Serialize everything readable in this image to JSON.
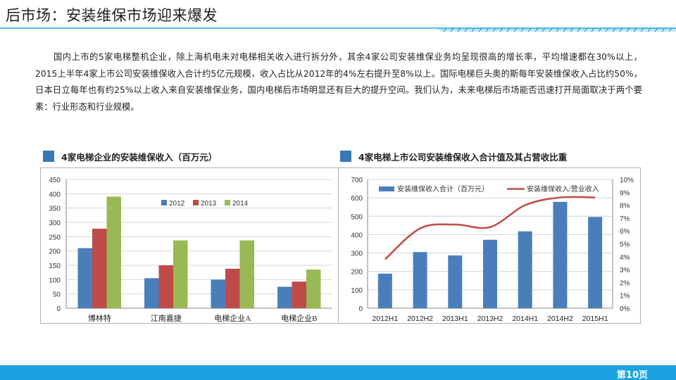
{
  "page": {
    "title": "后市场：安装维保市场迎来爆发",
    "intro": "国内上市的5家电梯整机企业，除上海机电未对电梯相关收入进行拆分外，其余4家公司安装维保业务均呈现很高的增长率，平均增速都在30%以上，2015上半年4家上市公司安装维保收入合计约5亿元规模，收入占比从2012年的4%左右提升至8%以上。国际电梯巨头奥的斯每年安装维保收入占比约50%，日本日立每年也有约25%以上收入来自安装维保业务，国内电梯后市场明显还有巨大的提升空间。我们认为，未来电梯后市场能否迅速打开局面取决于两个要素：行业形态和行业规模。",
    "page_number": "第10页",
    "accent_color": "#1aa3e0"
  },
  "chart_data": [
    {
      "type": "bar",
      "title": "4家电梯企业的安装维保收入（百万元）",
      "categories": [
        "博林特",
        "江南嘉捷",
        "电梯企业A",
        "电梯企业B"
      ],
      "series": [
        {
          "name": "2012",
          "color": "#4a7ebb",
          "values": [
            210,
            105,
            100,
            75
          ]
        },
        {
          "name": "2013",
          "color": "#be4b48",
          "values": [
            278,
            150,
            138,
            93
          ]
        },
        {
          "name": "2014",
          "color": "#98b954",
          "values": [
            390,
            237,
            237,
            135
          ]
        }
      ],
      "ylim": [
        0,
        450
      ],
      "yticks": [
        0,
        50,
        100,
        150,
        200,
        250,
        300,
        350,
        400,
        450
      ],
      "legend": "top-center",
      "grid": true
    },
    {
      "type": "bar",
      "title": "4家电梯上市公司安装维保收入合计值及其占营收比重",
      "categories": [
        "2012H1",
        "2012H2",
        "2013H1",
        "2013H2",
        "2014H1",
        "2014H2",
        "2015H1"
      ],
      "series": [
        {
          "name": "安装维保收入合计（百万元）",
          "type": "bar",
          "axis": "left",
          "color": "#4a7ebb",
          "values": [
            188,
            305,
            287,
            372,
            418,
            578,
            496
          ]
        },
        {
          "name": "安装维保收入/营业收入",
          "type": "line",
          "axis": "right",
          "color": "#c0504d",
          "values": [
            3.8,
            6.2,
            6.5,
            6.3,
            8.0,
            8.6,
            8.6
          ]
        }
      ],
      "ylim_left": [
        0,
        700
      ],
      "yticks_left": [
        0,
        100,
        200,
        300,
        400,
        500,
        600,
        700
      ],
      "ylim_right": [
        0,
        10
      ],
      "yticks_right": [
        "0%",
        "1%",
        "2%",
        "3%",
        "4%",
        "5%",
        "6%",
        "7%",
        "8%",
        "9%",
        "10%"
      ],
      "legend": "top",
      "grid": true
    }
  ]
}
